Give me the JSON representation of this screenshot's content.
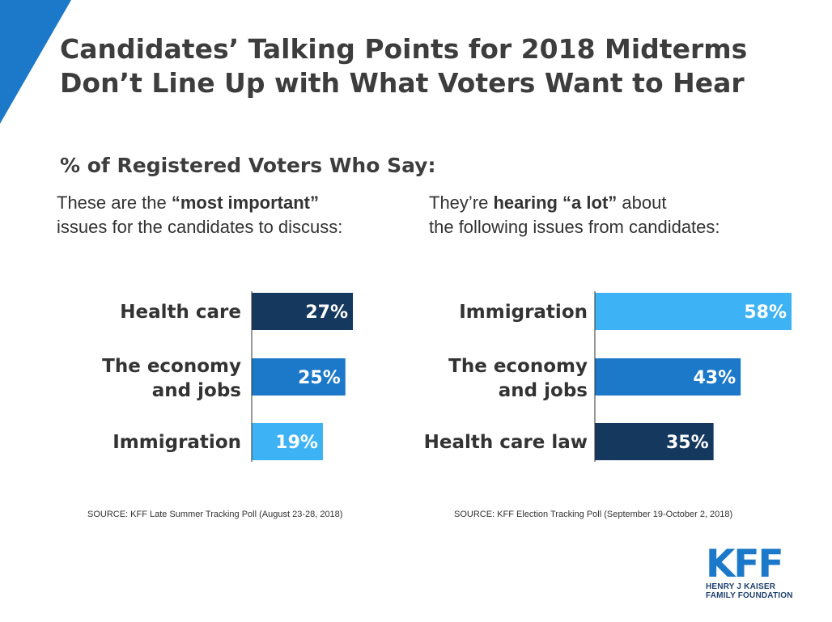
{
  "colors": {
    "accent_blue": "#1c79c9",
    "light_blue": "#3db3f5",
    "dark_navy": "#15385e",
    "text": "#333333"
  },
  "title": "Candidates’ Talking Points for 2018 Midterms Don’t Line Up with What Voters Want to Hear",
  "subtitle": "% of Registered Voters Who Say:",
  "panels": [
    {
      "intro": [
        {
          "text": "These are the ",
          "bold": false
        },
        {
          "text": "“most important”",
          "bold": true
        },
        {
          "text": "\nissues for the candidates to discuss:",
          "bold": false
        }
      ],
      "source": "SOURCE: KFF Late Summer Tracking Poll (August 23-28, 2018)"
    },
    {
      "intro": [
        {
          "text": "They’re ",
          "bold": false
        },
        {
          "text": "hearing “a lot”",
          "bold": true
        },
        {
          "text": " about\nthe following issues from candidates:",
          "bold": false
        }
      ],
      "source": "SOURCE: KFF Election Tracking Poll (September 19-October 2, 2018)"
    }
  ],
  "chart_data": [
    {
      "type": "bar",
      "orientation": "horizontal",
      "categories": [
        "Health care",
        "The economy and jobs",
        "Immigration"
      ],
      "values": [
        27,
        25,
        19
      ],
      "value_labels": [
        "27%",
        "25%",
        "19%"
      ],
      "bar_colors": [
        "#15385e",
        "#1c79c9",
        "#3db3f5"
      ],
      "unit": "%",
      "grid": false
    },
    {
      "type": "bar",
      "orientation": "horizontal",
      "categories": [
        "Immigration",
        "The economy and jobs",
        "Health care law"
      ],
      "values": [
        58,
        43,
        35
      ],
      "value_labels": [
        "58%",
        "43%",
        "35%"
      ],
      "bar_colors": [
        "#3db3f5",
        "#1c79c9",
        "#15385e"
      ],
      "unit": "%",
      "grid": false
    }
  ],
  "logo": {
    "wordmark": "KFF",
    "lines": [
      "HENRY J KAISER",
      "FAMILY FOUNDATION"
    ]
  }
}
